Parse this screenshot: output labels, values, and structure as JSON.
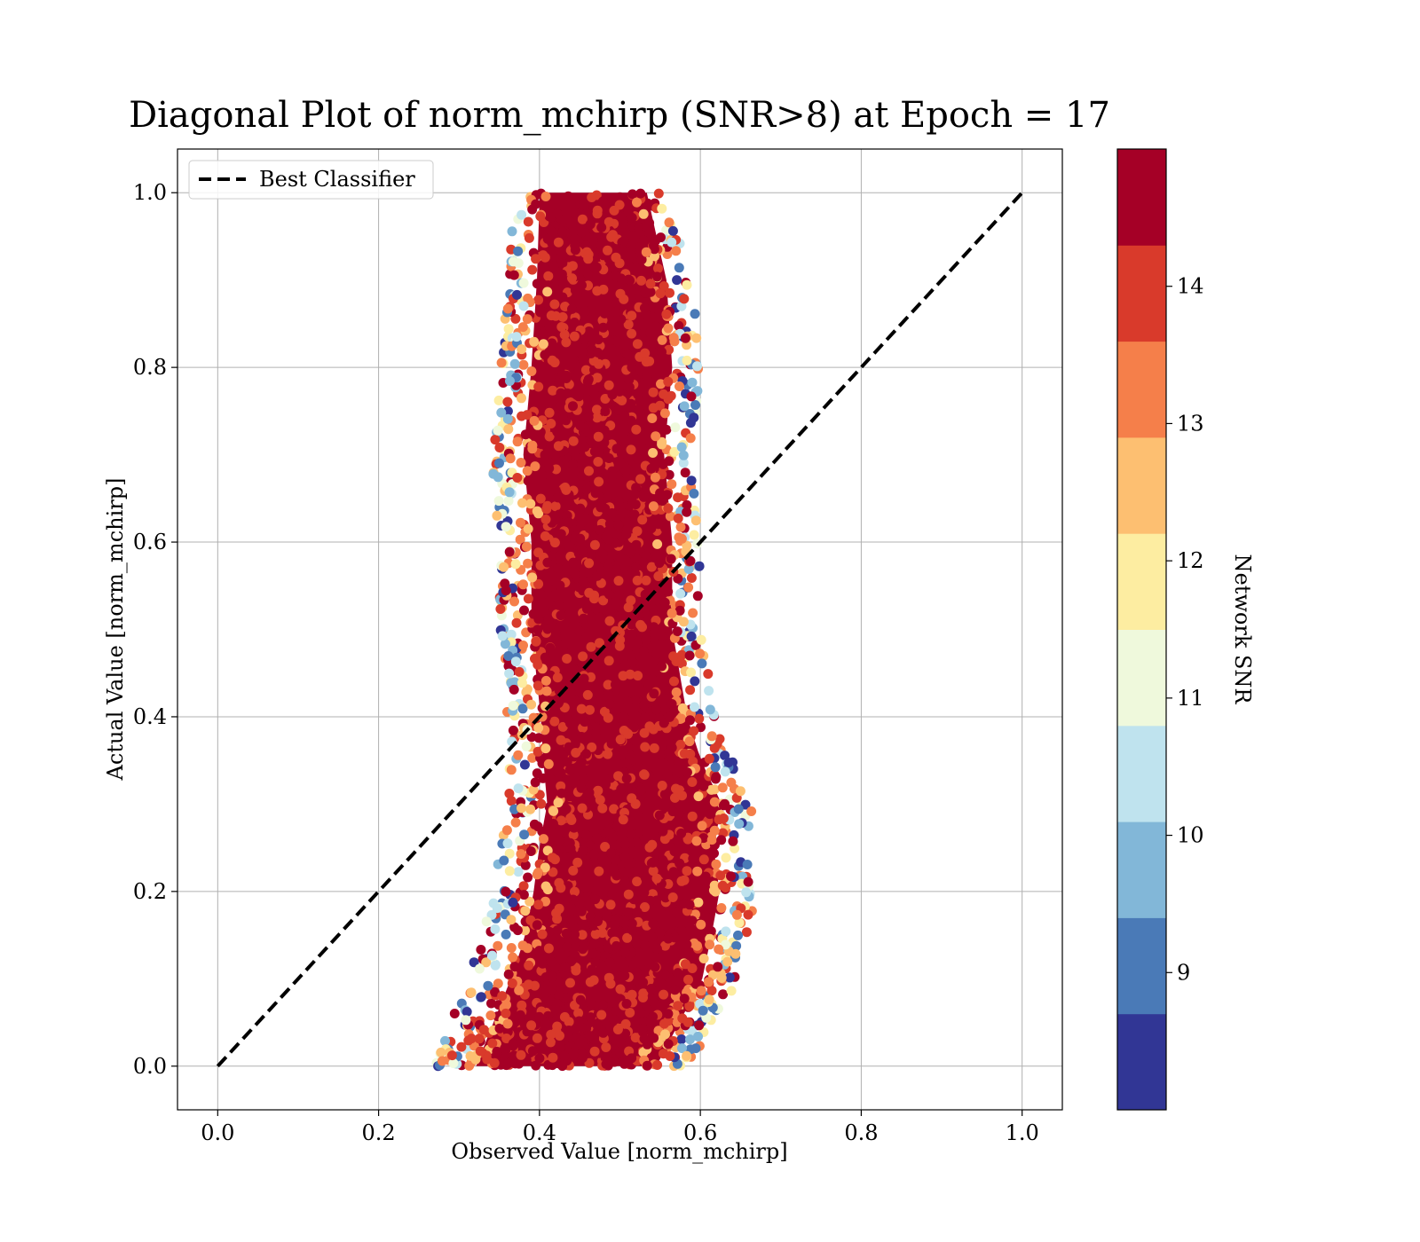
{
  "chart_data": {
    "type": "scatter",
    "title": "Diagonal Plot of norm_mchirp (SNR>8) at Epoch = 17",
    "xlabel": "Observed Value [norm_mchirp]",
    "ylabel": "Actual Value [norm_mchirp]",
    "xlim": [
      -0.05,
      1.05
    ],
    "ylim": [
      -0.05,
      1.05
    ],
    "xticks": [
      "0.0",
      "0.2",
      "0.4",
      "0.6",
      "0.8",
      "1.0"
    ],
    "yticks": [
      "0.0",
      "0.2",
      "0.4",
      "0.6",
      "0.8",
      "1.0"
    ],
    "grid": true,
    "legend": {
      "position": "top-left",
      "entries": [
        "Best Classifier"
      ]
    },
    "reference_line": {
      "name": "Best Classifier",
      "x": [
        0.0,
        1.0
      ],
      "y": [
        0.0,
        1.0
      ],
      "style": "dashed",
      "color": "#000000"
    },
    "colorbar": {
      "label": "Network SNR",
      "range": [
        8.0,
        15.0
      ],
      "ticks": [
        "9",
        "10",
        "11",
        "12",
        "13",
        "14"
      ],
      "tick_values": [
        9,
        10,
        11,
        12,
        13,
        14
      ],
      "colors": [
        "#313695",
        "#4a7ab7",
        "#82b7d8",
        "#bfe3ee",
        "#eff9dc",
        "#fdeda1",
        "#fdbf71",
        "#f57f4a",
        "#d93a2b",
        "#a50026"
      ]
    },
    "scatter_envelope": [
      {
        "y": 0.0,
        "x_min": 0.27,
        "x_max": 0.59
      },
      {
        "y": 0.05,
        "x_min": 0.29,
        "x_max": 0.62
      },
      {
        "y": 0.1,
        "x_min": 0.31,
        "x_max": 0.65
      },
      {
        "y": 0.15,
        "x_min": 0.33,
        "x_max": 0.66
      },
      {
        "y": 0.2,
        "x_min": 0.34,
        "x_max": 0.67
      },
      {
        "y": 0.25,
        "x_min": 0.35,
        "x_max": 0.66
      },
      {
        "y": 0.3,
        "x_min": 0.36,
        "x_max": 0.67
      },
      {
        "y": 0.35,
        "x_min": 0.36,
        "x_max": 0.64
      },
      {
        "y": 0.4,
        "x_min": 0.36,
        "x_max": 0.62
      },
      {
        "y": 0.5,
        "x_min": 0.35,
        "x_max": 0.6
      },
      {
        "y": 0.6,
        "x_min": 0.35,
        "x_max": 0.6
      },
      {
        "y": 0.7,
        "x_min": 0.34,
        "x_max": 0.59
      },
      {
        "y": 0.8,
        "x_min": 0.35,
        "x_max": 0.6
      },
      {
        "y": 0.9,
        "x_min": 0.36,
        "x_max": 0.59
      },
      {
        "y": 1.0,
        "x_min": 0.37,
        "x_max": 0.56
      }
    ],
    "dense_core_color": "#a50026"
  }
}
